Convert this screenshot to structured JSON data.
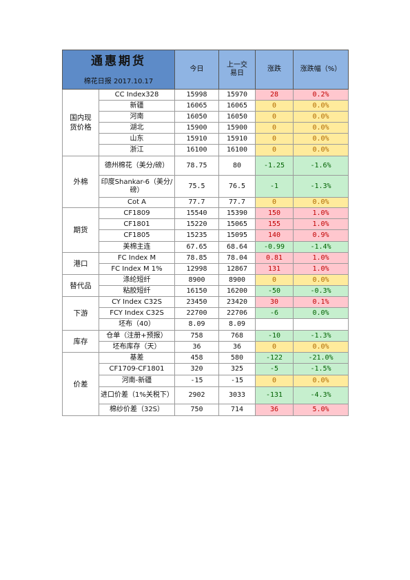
{
  "document": {
    "company": "通惠期货",
    "subtitle": "棉花日报 2017.10.17"
  },
  "columns": {
    "today": "今日",
    "prev": "上一交易日",
    "change": "涨跌",
    "pct": "涨跌幅（%）"
  },
  "colors": {
    "header_brand": "#5d8bc8",
    "header": "#8fb4e3",
    "up_bg": "#ffc7ce",
    "up_text": "#c00000",
    "flat_bg": "#ffeb9c",
    "flat_text": "#b06a00",
    "down_bg": "#c6efce",
    "down_text": "#006100"
  },
  "sections": [
    {
      "name": "国内现货价格",
      "rows": [
        {
          "item": "CC Index328",
          "today": "15998",
          "prev": "15970",
          "change": "28",
          "pct": "0.2%"
        },
        {
          "item": "新疆",
          "today": "16065",
          "prev": "16065",
          "change": "0",
          "pct": "0.0%"
        },
        {
          "item": "河南",
          "today": "16050",
          "prev": "16050",
          "change": "0",
          "pct": "0.0%"
        },
        {
          "item": "湖北",
          "today": "15900",
          "prev": "15900",
          "change": "0",
          "pct": "0.0%"
        },
        {
          "item": "山东",
          "today": "15910",
          "prev": "15910",
          "change": "0",
          "pct": "0.0%"
        },
        {
          "item": "浙江",
          "today": "16100",
          "prev": "16100",
          "change": "0",
          "pct": "0.0%"
        }
      ]
    },
    {
      "name": "外棉",
      "rows": [
        {
          "item": "德州棉花（美分/磅）",
          "today": "78.75",
          "prev": "80",
          "change": "-1.25",
          "pct": "-1.6%"
        },
        {
          "item": "印度Shankar-6（美分/磅）",
          "today": "75.5",
          "prev": "76.5",
          "change": "-1",
          "pct": "-1.3%"
        },
        {
          "item": "Cot A",
          "today": "77.7",
          "prev": "77.7",
          "change": "0",
          "pct": "0.0%"
        }
      ]
    },
    {
      "name": "期货",
      "rows": [
        {
          "item": "CF1809",
          "today": "15540",
          "prev": "15390",
          "change": "150",
          "pct": "1.0%"
        },
        {
          "item": "CF1801",
          "today": "15220",
          "prev": "15065",
          "change": "155",
          "pct": "1.0%"
        },
        {
          "item": "CF1805",
          "today": "15235",
          "prev": "15095",
          "change": "140",
          "pct": "0.9%"
        },
        {
          "item": "美棉主连",
          "today": "67.65",
          "prev": "68.64",
          "change": "-0.99",
          "pct": "-1.4%"
        }
      ]
    },
    {
      "name": "港口",
      "rows": [
        {
          "item": "FC Index M",
          "today": "78.85",
          "prev": "78.04",
          "change": "0.81",
          "pct": "1.0%"
        },
        {
          "item": "FC Index M 1%",
          "today": "12998",
          "prev": "12867",
          "change": "131",
          "pct": "1.0%"
        }
      ]
    },
    {
      "name": "替代品",
      "rows": [
        {
          "item": "涤纶短纤",
          "today": "8900",
          "prev": "8900",
          "change": "0",
          "pct": "0.0%"
        },
        {
          "item": "粘胶短纤",
          "today": "16150",
          "prev": "16200",
          "change": "-50",
          "pct": "-0.3%"
        }
      ]
    },
    {
      "name": "下游",
      "rows": [
        {
          "item": "CY Index C32S",
          "today": "23450",
          "prev": "23420",
          "change": "30",
          "pct": "0.1%"
        },
        {
          "item": "FCY Index C32S",
          "today": "22700",
          "prev": "22706",
          "change": "-6",
          "pct": "0.0%"
        },
        {
          "item": "坯布（40）",
          "today": "8.09",
          "prev": "8.09"
        }
      ]
    },
    {
      "name": "库存",
      "rows": [
        {
          "item": "仓单（注册+预报）",
          "today": "758",
          "prev": "768",
          "change": "-10",
          "pct": "-1.3%"
        },
        {
          "item": "坯布库存（天）",
          "today": "36",
          "prev": "36",
          "change": "0",
          "pct": "0.0%"
        }
      ]
    },
    {
      "name": "价差",
      "rows": [
        {
          "item": "基差",
          "today": "458",
          "prev": "580",
          "change": "-122",
          "pct": "-21.0%"
        },
        {
          "item": "CF1709-CF1801",
          "today": "320",
          "prev": "325",
          "change": "-5",
          "pct": "-1.5%"
        },
        {
          "item": "河南-新疆",
          "today": "-15",
          "prev": "-15",
          "change": "0",
          "pct": "0.0%"
        },
        {
          "item": "进口价差（1%关税下）",
          "today": "2902",
          "prev": "3033",
          "change": "-131",
          "pct": "-4.3%"
        },
        {
          "item": "棉纱价差（32S）",
          "today": "750",
          "prev": "714",
          "change": "36",
          "pct": "5.0%"
        }
      ]
    }
  ]
}
